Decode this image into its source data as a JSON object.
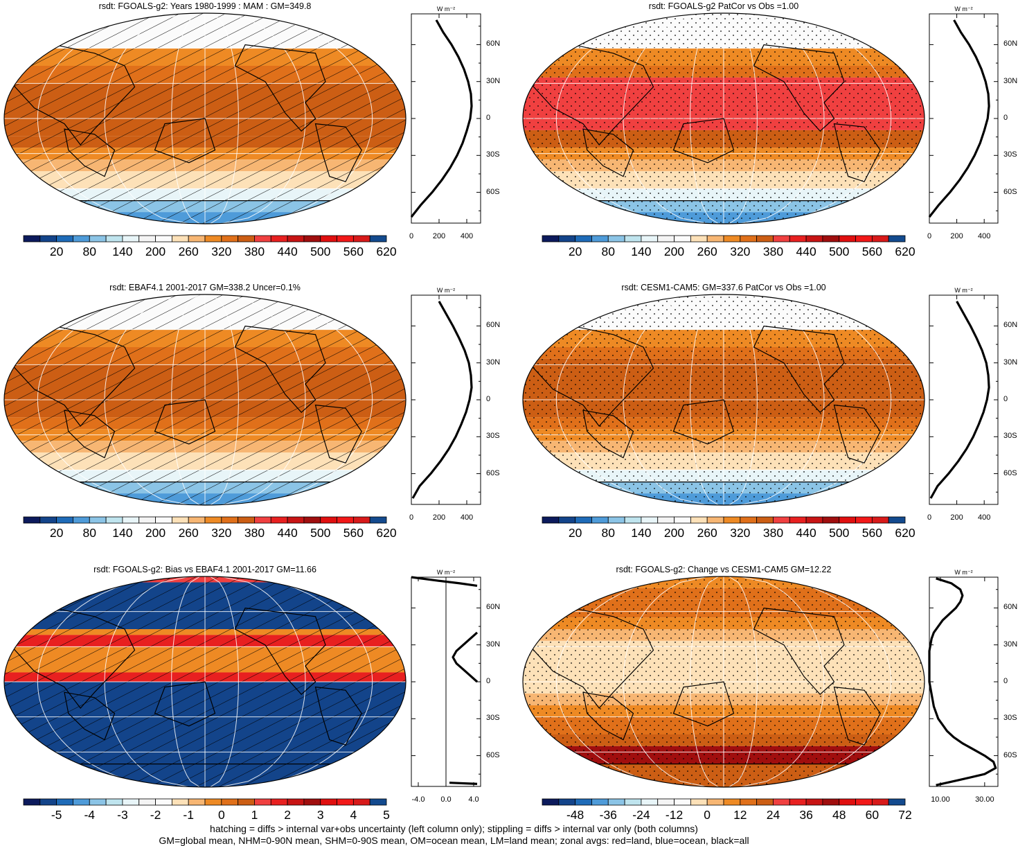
{
  "captions": [
    "hatching = diffs > internal var+obs uncertainty (left column only); stippling = diffs > internal var only (both columns)",
    "GM=global mean, NHM=0-90N mean, SHM=0-90S mean, OM=ocean mean, LM=land mean; zonal avgs: red=land, blue=ocean, black=all"
  ],
  "colors": {
    "palette": [
      "#0c1a5c",
      "#13448a",
      "#1e6bb8",
      "#4e9bd9",
      "#8bc4e6",
      "#bfe4ee",
      "#e8f5f8",
      "#f4f4f4",
      "#fbfbfb",
      "#fde1b8",
      "#f7b673",
      "#ee8a24",
      "#e0701a",
      "#cc5e14",
      "#f04040",
      "#e82020",
      "#c81414",
      "#a00e0e",
      "#e00f0f",
      "#f21818",
      "#d81a1a",
      "#134a8e"
    ],
    "hatch": "#000000",
    "grid": "#ffffff",
    "profile": "#000000"
  },
  "chart_data": [
    {
      "id": "p1",
      "type": "heatmap",
      "title": "rsdt: FGOALS-g2: Years 1980-1999 : MAM : GM=349.8",
      "pattern": "hatch",
      "lat_bands": [
        {
          "lat": [
            60,
            90
          ],
          "value": 230
        },
        {
          "lat": [
            45,
            60
          ],
          "value": 330
        },
        {
          "lat": [
            30,
            45
          ],
          "value": 380
        },
        {
          "lat": [
            -15,
            30
          ],
          "value": 420
        },
        {
          "lat": [
            -25,
            -15
          ],
          "value": 395
        },
        {
          "lat": [
            -35,
            -25
          ],
          "value": 350
        },
        {
          "lat": [
            -45,
            -35
          ],
          "value": 300
        },
        {
          "lat": [
            -60,
            -45
          ],
          "value": 255
        },
        {
          "lat": [
            -70,
            -60
          ],
          "value": 150
        },
        {
          "lat": [
            -80,
            -70
          ],
          "value": 100
        },
        {
          "lat": [
            -90,
            -80
          ],
          "value": 60
        }
      ],
      "colorbar": {
        "labels": [
          "20",
          "80",
          "140",
          "200",
          "260",
          "320",
          "380",
          "440",
          "500",
          "560",
          "620"
        ]
      },
      "zonal": {
        "unit": "W m⁻²",
        "xticks": [
          "0",
          "200",
          "400"
        ],
        "xlim": [
          0,
          500
        ],
        "yticks": [
          "60N",
          "30N",
          "0",
          "30S",
          "60S"
        ],
        "lat": [
          80,
          70,
          60,
          50,
          40,
          30,
          20,
          10,
          0,
          -10,
          -20,
          -30,
          -40,
          -50,
          -60,
          -70,
          -80
        ],
        "values": [
          180,
          230,
          290,
          340,
          380,
          410,
          430,
          435,
          425,
          400,
          370,
          330,
          280,
          220,
          150,
          70,
          0
        ]
      }
    },
    {
      "id": "p2",
      "type": "heatmap",
      "title": "rsdt: FGOALS-g2 PatCor vs Obs =1.00",
      "pattern": "stipple",
      "lat_bands": [
        {
          "lat": [
            60,
            90
          ],
          "value": 240
        },
        {
          "lat": [
            45,
            60
          ],
          "value": 320
        },
        {
          "lat": [
            35,
            45
          ],
          "value": 380
        },
        {
          "lat": [
            -10,
            35
          ],
          "value": 430
        },
        {
          "lat": [
            -25,
            -10
          ],
          "value": 395
        },
        {
          "lat": [
            -35,
            -25
          ],
          "value": 350
        },
        {
          "lat": [
            -45,
            -35
          ],
          "value": 300
        },
        {
          "lat": [
            -60,
            -45
          ],
          "value": 250
        },
        {
          "lat": [
            -70,
            -60
          ],
          "value": 160
        },
        {
          "lat": [
            -80,
            -70
          ],
          "value": 100
        },
        {
          "lat": [
            -90,
            -80
          ],
          "value": 60
        }
      ],
      "colorbar": {
        "labels": [
          "20",
          "80",
          "140",
          "200",
          "260",
          "320",
          "380",
          "440",
          "500",
          "560",
          "620"
        ]
      },
      "zonal": {
        "unit": "W m⁻²",
        "xticks": [
          "0",
          "200",
          "400"
        ],
        "xlim": [
          0,
          500
        ],
        "yticks": [
          "60N",
          "30N",
          "0",
          "30S",
          "60S"
        ],
        "lat": [
          80,
          70,
          60,
          50,
          40,
          30,
          20,
          10,
          0,
          -10,
          -20,
          -30,
          -40,
          -50,
          -60,
          -70,
          -80
        ],
        "values": [
          180,
          230,
          290,
          340,
          380,
          410,
          430,
          435,
          425,
          400,
          370,
          330,
          280,
          220,
          150,
          70,
          0
        ]
      }
    },
    {
      "id": "p3",
      "type": "heatmap",
      "title": "rsdt: EBAF4.1 2001-2017 GM=338.2 Uncer=0.1%",
      "pattern": "hatch",
      "lat_bands": [
        {
          "lat": [
            60,
            90
          ],
          "value": 230
        },
        {
          "lat": [
            45,
            60
          ],
          "value": 330
        },
        {
          "lat": [
            30,
            45
          ],
          "value": 380
        },
        {
          "lat": [
            -15,
            30
          ],
          "value": 420
        },
        {
          "lat": [
            -25,
            -15
          ],
          "value": 390
        },
        {
          "lat": [
            -35,
            -25
          ],
          "value": 345
        },
        {
          "lat": [
            -45,
            -35
          ],
          "value": 300
        },
        {
          "lat": [
            -60,
            -45
          ],
          "value": 255
        },
        {
          "lat": [
            -70,
            -60
          ],
          "value": 150
        },
        {
          "lat": [
            -80,
            -70
          ],
          "value": 100
        },
        {
          "lat": [
            -90,
            -80
          ],
          "value": 60
        }
      ],
      "colorbar": {
        "labels": [
          "20",
          "80",
          "140",
          "200",
          "260",
          "320",
          "380",
          "440",
          "500",
          "560",
          "620"
        ]
      },
      "zonal": {
        "unit": "W m⁻²",
        "xticks": [
          "0",
          "200",
          "400"
        ],
        "xlim": [
          0,
          500
        ],
        "yticks": [
          "60N",
          "30N",
          "0",
          "30S",
          "60S"
        ],
        "lat": [
          80,
          70,
          60,
          50,
          40,
          30,
          20,
          10,
          0,
          -10,
          -20,
          -30,
          -40,
          -50,
          -60,
          -70,
          -80
        ],
        "values": [
          200,
          250,
          300,
          345,
          385,
          415,
          430,
          435,
          420,
          395,
          360,
          320,
          270,
          210,
          140,
          60,
          10
        ]
      }
    },
    {
      "id": "p4",
      "type": "heatmap",
      "title": "rsdt: CESM1-CAM5: GM=337.6 PatCor vs Obs =1.00",
      "pattern": "stipple",
      "lat_bands": [
        {
          "lat": [
            60,
            90
          ],
          "value": 240
        },
        {
          "lat": [
            45,
            60
          ],
          "value": 330
        },
        {
          "lat": [
            35,
            45
          ],
          "value": 380
        },
        {
          "lat": [
            -15,
            35
          ],
          "value": 425
        },
        {
          "lat": [
            -25,
            -15
          ],
          "value": 390
        },
        {
          "lat": [
            -35,
            -25
          ],
          "value": 340
        },
        {
          "lat": [
            -45,
            -35
          ],
          "value": 290
        },
        {
          "lat": [
            -60,
            -45
          ],
          "value": 250
        },
        {
          "lat": [
            -70,
            -60
          ],
          "value": 150
        },
        {
          "lat": [
            -80,
            -70
          ],
          "value": 100
        },
        {
          "lat": [
            -90,
            -80
          ],
          "value": 60
        }
      ],
      "colorbar": {
        "labels": [
          "20",
          "80",
          "140",
          "200",
          "260",
          "320",
          "380",
          "440",
          "500",
          "560",
          "620"
        ]
      },
      "zonal": {
        "unit": "W m⁻²",
        "xticks": [
          "0",
          "200",
          "400"
        ],
        "xlim": [
          0,
          500
        ],
        "yticks": [
          "60N",
          "30N",
          "0",
          "30S",
          "60S"
        ],
        "lat": [
          80,
          70,
          60,
          50,
          40,
          30,
          20,
          10,
          0,
          -10,
          -20,
          -30,
          -40,
          -50,
          -60,
          -70,
          -80
        ],
        "values": [
          200,
          250,
          300,
          345,
          385,
          415,
          430,
          435,
          420,
          395,
          360,
          320,
          270,
          210,
          140,
          60,
          10
        ]
      }
    },
    {
      "id": "p5",
      "type": "heatmap",
      "title": "rsdt: FGOALS-g2: Bias vs EBAF4.1 2001-2017 GM=11.66",
      "pattern": "hatch",
      "lat_bands": [
        {
          "lat": [
            85,
            90
          ],
          "value": 2
        },
        {
          "lat": [
            45,
            85
          ],
          "value": -5.5
        },
        {
          "lat": [
            40,
            45
          ],
          "value": 0.5
        },
        {
          "lat": [
            30,
            40
          ],
          "value": 2.5
        },
        {
          "lat": [
            8,
            30
          ],
          "value": 0.5
        },
        {
          "lat": [
            0,
            8
          ],
          "value": 2.5
        },
        {
          "lat": [
            -90,
            0
          ],
          "value": -5.5
        }
      ],
      "colorbar": {
        "labels": [
          "-5",
          "-4",
          "-3",
          "-2",
          "-1",
          "0",
          "1",
          "2",
          "3",
          "4",
          "5"
        ]
      },
      "zonal": {
        "unit": "W m⁻²",
        "xticks": [
          "-4.0",
          "0.0",
          "4.0"
        ],
        "xlim": [
          -5,
          5
        ],
        "yticks": [
          "60N",
          "30N",
          "0",
          "30S",
          "60S"
        ],
        "segments": [
          {
            "lat": [
              85,
              82,
              80,
              78
            ],
            "values": [
              -5,
              -1,
              2,
              4.5
            ]
          },
          {
            "lat": [
              40,
              35,
              30,
              25,
              20,
              15,
              10,
              5,
              0
            ],
            "values": [
              4.5,
              3.5,
              2.5,
              1.5,
              1.0,
              1.5,
              2.5,
              3.5,
              4.5
            ]
          },
          {
            "lat": [
              -82,
              -83
            ],
            "values": [
              0.5,
              4.5
            ]
          }
        ]
      }
    },
    {
      "id": "p6",
      "type": "heatmap",
      "title": "rsdt: FGOALS-g2: Change vs CESM1-CAM5 GM=12.22",
      "pattern": "stipple",
      "lat_bands": [
        {
          "lat": [
            80,
            90
          ],
          "value": 14
        },
        {
          "lat": [
            70,
            80
          ],
          "value": 20
        },
        {
          "lat": [
            55,
            70
          ],
          "value": 26
        },
        {
          "lat": [
            45,
            55
          ],
          "value": 18
        },
        {
          "lat": [
            35,
            45
          ],
          "value": 8
        },
        {
          "lat": [
            -10,
            35
          ],
          "value": 2
        },
        {
          "lat": [
            -20,
            -10
          ],
          "value": 8
        },
        {
          "lat": [
            -30,
            -20
          ],
          "value": 16
        },
        {
          "lat": [
            -45,
            -30
          ],
          "value": 24
        },
        {
          "lat": [
            -55,
            -45
          ],
          "value": 30
        },
        {
          "lat": [
            -70,
            -55
          ],
          "value": 60
        },
        {
          "lat": [
            -90,
            -70
          ],
          "value": 30
        }
      ],
      "colorbar": {
        "labels": [
          "-48",
          "-36",
          "-24",
          "-12",
          "0",
          "12",
          "24",
          "36",
          "48",
          "60",
          "72"
        ]
      },
      "zonal": {
        "unit": "W m⁻²",
        "xticks": [
          "10.00",
          "30.00"
        ],
        "xlim": [
          5,
          36
        ],
        "yticks": [
          "60N",
          "30N",
          "0",
          "30S",
          "60S"
        ],
        "lat": [
          84,
          80,
          75,
          70,
          65,
          60,
          55,
          50,
          45,
          40,
          35,
          30,
          25,
          20,
          15,
          10,
          5,
          0,
          -5,
          -10,
          -15,
          -20,
          -25,
          -30,
          -35,
          -40,
          -45,
          -50,
          -55,
          -60,
          -65,
          -70,
          -75,
          -80,
          -84
        ],
        "values": [
          8,
          15,
          19,
          20,
          19,
          17,
          14,
          11,
          9,
          7,
          6,
          5.5,
          5,
          5,
          5,
          5,
          5,
          5,
          5.5,
          6,
          6.5,
          7,
          8,
          9,
          11,
          13,
          16,
          20,
          25,
          30,
          34,
          35,
          30,
          18,
          8
        ]
      }
    }
  ]
}
